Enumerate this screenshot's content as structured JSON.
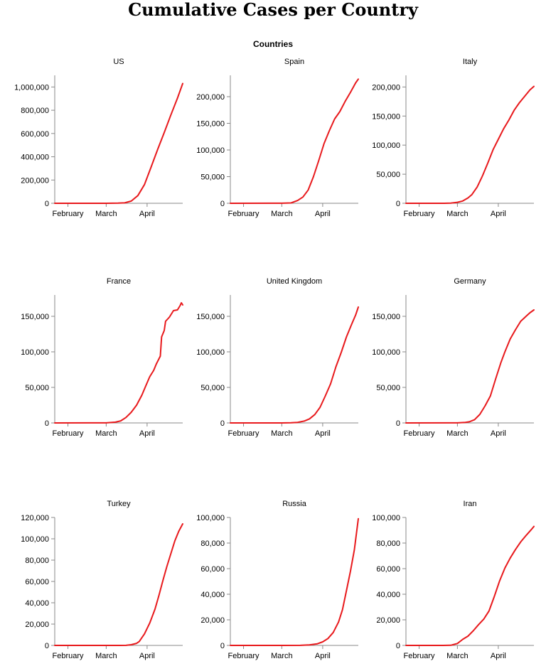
{
  "chart_data": {
    "type": "line",
    "title": "Cumulative Cases per Country",
    "facet_header": "Countries",
    "line_color": "#e8191c",
    "x_ticks": [
      "February",
      "March",
      "April"
    ],
    "x_domain": [
      "2020-01-22",
      "2020-04-28"
    ],
    "x_tick_dates": [
      "2020-02-01",
      "2020-03-01",
      "2020-04-01"
    ],
    "panels": [
      {
        "name": "US",
        "ylim": [
          0,
          1100000
        ],
        "y_ticks": [
          0,
          200000,
          400000,
          600000,
          800000,
          1000000
        ],
        "y_tick_labels": [
          "0",
          "200,000",
          "400,000",
          "600,000",
          "800,000",
          "1,000,000"
        ],
        "points": [
          [
            "2020-01-22",
            1
          ],
          [
            "2020-03-01",
            75
          ],
          [
            "2020-03-10",
            960
          ],
          [
            "2020-03-15",
            3500
          ],
          [
            "2020-03-20",
            19000
          ],
          [
            "2020-03-25",
            66000
          ],
          [
            "2020-03-30",
            161000
          ],
          [
            "2020-04-04",
            311000
          ],
          [
            "2020-04-09",
            462000
          ],
          [
            "2020-04-14",
            608000
          ],
          [
            "2020-04-19",
            759000
          ],
          [
            "2020-04-24",
            904000
          ],
          [
            "2020-04-28",
            1030000
          ]
        ]
      },
      {
        "name": "Spain",
        "ylim": [
          0,
          240000
        ],
        "y_ticks": [
          0,
          50000,
          100000,
          150000,
          200000
        ],
        "y_tick_labels": [
          "0",
          "50,000",
          "100,000",
          "150,000",
          "200,000"
        ],
        "points": [
          [
            "2020-01-22",
            0
          ],
          [
            "2020-03-01",
            84
          ],
          [
            "2020-03-08",
            670
          ],
          [
            "2020-03-13",
            5200
          ],
          [
            "2020-03-17",
            11700
          ],
          [
            "2020-03-21",
            25000
          ],
          [
            "2020-03-25",
            50000
          ],
          [
            "2020-03-29",
            80000
          ],
          [
            "2020-04-02",
            112000
          ],
          [
            "2020-04-06",
            136000
          ],
          [
            "2020-04-10",
            158000
          ],
          [
            "2020-04-14",
            172000
          ],
          [
            "2020-04-18",
            191000
          ],
          [
            "2020-04-22",
            208000
          ],
          [
            "2020-04-26",
            226000
          ],
          [
            "2020-04-28",
            233000
          ]
        ]
      },
      {
        "name": "Italy",
        "ylim": [
          0,
          220000
        ],
        "y_ticks": [
          0,
          50000,
          100000,
          150000,
          200000
        ],
        "y_tick_labels": [
          "0",
          "50,000",
          "100,000",
          "150,000",
          "200,000"
        ],
        "points": [
          [
            "2020-01-22",
            0
          ],
          [
            "2020-02-20",
            3
          ],
          [
            "2020-02-25",
            320
          ],
          [
            "2020-03-01",
            1700
          ],
          [
            "2020-03-05",
            3900
          ],
          [
            "2020-03-09",
            9200
          ],
          [
            "2020-03-12",
            15000
          ],
          [
            "2020-03-16",
            28000
          ],
          [
            "2020-03-20",
            47000
          ],
          [
            "2020-03-24",
            69000
          ],
          [
            "2020-03-28",
            92000
          ],
          [
            "2020-04-01",
            110000
          ],
          [
            "2020-04-05",
            128000
          ],
          [
            "2020-04-09",
            143000
          ],
          [
            "2020-04-13",
            160000
          ],
          [
            "2020-04-17",
            173000
          ],
          [
            "2020-04-21",
            184000
          ],
          [
            "2020-04-25",
            195000
          ],
          [
            "2020-04-28",
            201000
          ]
        ]
      },
      {
        "name": "France",
        "ylim": [
          0,
          180000
        ],
        "y_ticks": [
          0,
          50000,
          100000,
          150000
        ],
        "y_tick_labels": [
          "0",
          "50,000",
          "100,000",
          "150,000"
        ],
        "points": [
          [
            "2020-01-22",
            0
          ],
          [
            "2020-03-01",
            130
          ],
          [
            "2020-03-08",
            1100
          ],
          [
            "2020-03-12",
            2900
          ],
          [
            "2020-03-16",
            7700
          ],
          [
            "2020-03-20",
            15000
          ],
          [
            "2020-03-24",
            25000
          ],
          [
            "2020-03-28",
            39000
          ],
          [
            "2020-03-31",
            52000
          ],
          [
            "2020-04-03",
            65000
          ],
          [
            "2020-04-06",
            74000
          ],
          [
            "2020-04-08",
            83000
          ],
          [
            "2020-04-11",
            94000
          ],
          [
            "2020-04-12",
            121000
          ],
          [
            "2020-04-14",
            130000
          ],
          [
            "2020-04-15",
            143000
          ],
          [
            "2020-04-18",
            149000
          ],
          [
            "2020-04-21",
            158000
          ],
          [
            "2020-04-24",
            159000
          ],
          [
            "2020-04-26",
            165000
          ],
          [
            "2020-04-27",
            169000
          ],
          [
            "2020-04-28",
            166000
          ]
        ]
      },
      {
        "name": "United Kingdom",
        "ylim": [
          0,
          180000
        ],
        "y_ticks": [
          0,
          50000,
          100000,
          150000
        ],
        "y_tick_labels": [
          "0",
          "50,000",
          "100,000",
          "150,000"
        ],
        "points": [
          [
            "2020-01-22",
            0
          ],
          [
            "2020-03-01",
            36
          ],
          [
            "2020-03-08",
            270
          ],
          [
            "2020-03-13",
            800
          ],
          [
            "2020-03-18",
            2600
          ],
          [
            "2020-03-22",
            5700
          ],
          [
            "2020-03-26",
            11800
          ],
          [
            "2020-03-30",
            22000
          ],
          [
            "2020-04-03",
            38000
          ],
          [
            "2020-04-07",
            55000
          ],
          [
            "2020-04-11",
            79000
          ],
          [
            "2020-04-15",
            99000
          ],
          [
            "2020-04-19",
            121000
          ],
          [
            "2020-04-23",
            139000
          ],
          [
            "2020-04-26",
            152000
          ],
          [
            "2020-04-28",
            163000
          ]
        ]
      },
      {
        "name": "Germany",
        "ylim": [
          0,
          180000
        ],
        "y_ticks": [
          0,
          50000,
          100000,
          150000
        ],
        "y_tick_labels": [
          "0",
          "50,000",
          "100,000",
          "150,000"
        ],
        "points": [
          [
            "2020-01-22",
            0
          ],
          [
            "2020-03-01",
            130
          ],
          [
            "2020-03-07",
            800
          ],
          [
            "2020-03-10",
            1600
          ],
          [
            "2020-03-14",
            4600
          ],
          [
            "2020-03-18",
            12000
          ],
          [
            "2020-03-22",
            24000
          ],
          [
            "2020-03-26",
            38000
          ],
          [
            "2020-03-30",
            62000
          ],
          [
            "2020-04-03",
            85000
          ],
          [
            "2020-04-06",
            100000
          ],
          [
            "2020-04-10",
            118000
          ],
          [
            "2020-04-14",
            131000
          ],
          [
            "2020-04-18",
            143000
          ],
          [
            "2020-04-22",
            150000
          ],
          [
            "2020-04-25",
            155000
          ],
          [
            "2020-04-28",
            159000
          ]
        ]
      },
      {
        "name": "Turkey",
        "ylim": [
          0,
          120000
        ],
        "y_ticks": [
          0,
          20000,
          40000,
          60000,
          80000,
          100000,
          120000
        ],
        "y_tick_labels": [
          "0",
          "20,000",
          "40,000",
          "60,000",
          "80,000",
          "100,000",
          "120,000"
        ],
        "points": [
          [
            "2020-01-22",
            0
          ],
          [
            "2020-03-11",
            1
          ],
          [
            "2020-03-16",
            47
          ],
          [
            "2020-03-20",
            670
          ],
          [
            "2020-03-24",
            1900
          ],
          [
            "2020-03-26",
            3600
          ],
          [
            "2020-03-30",
            10800
          ],
          [
            "2020-04-03",
            20900
          ],
          [
            "2020-04-07",
            34000
          ],
          [
            "2020-04-10",
            47000
          ],
          [
            "2020-04-13",
            61000
          ],
          [
            "2020-04-16",
            74000
          ],
          [
            "2020-04-19",
            86000
          ],
          [
            "2020-04-22",
            98000
          ],
          [
            "2020-04-25",
            107000
          ],
          [
            "2020-04-28",
            114000
          ]
        ]
      },
      {
        "name": "Russia",
        "ylim": [
          0,
          100000
        ],
        "y_ticks": [
          0,
          20000,
          40000,
          60000,
          80000,
          100000
        ],
        "y_tick_labels": [
          "0",
          "20,000",
          "40,000",
          "60,000",
          "80,000",
          "100,000"
        ],
        "points": [
          [
            "2020-01-22",
            0
          ],
          [
            "2020-03-01",
            3
          ],
          [
            "2020-03-15",
            63
          ],
          [
            "2020-03-22",
            370
          ],
          [
            "2020-03-28",
            1260
          ],
          [
            "2020-04-01",
            2800
          ],
          [
            "2020-04-05",
            5400
          ],
          [
            "2020-04-09",
            10100
          ],
          [
            "2020-04-13",
            18300
          ],
          [
            "2020-04-16",
            27900
          ],
          [
            "2020-04-19",
            42800
          ],
          [
            "2020-04-22",
            57900
          ],
          [
            "2020-04-25",
            74600
          ],
          [
            "2020-04-28",
            99000
          ]
        ]
      },
      {
        "name": "Iran",
        "ylim": [
          0,
          100000
        ],
        "y_ticks": [
          0,
          20000,
          40000,
          60000,
          80000,
          100000
        ],
        "y_tick_labels": [
          "0",
          "20,000",
          "40,000",
          "60,000",
          "80,000",
          "100,000"
        ],
        "points": [
          [
            "2020-01-22",
            0
          ],
          [
            "2020-02-19",
            2
          ],
          [
            "2020-02-25",
            95
          ],
          [
            "2020-03-01",
            1500
          ],
          [
            "2020-03-05",
            4700
          ],
          [
            "2020-03-09",
            7200
          ],
          [
            "2020-03-13",
            11400
          ],
          [
            "2020-03-17",
            16200
          ],
          [
            "2020-03-21",
            20600
          ],
          [
            "2020-03-25",
            27000
          ],
          [
            "2020-03-29",
            38300
          ],
          [
            "2020-04-02",
            50500
          ],
          [
            "2020-04-06",
            60500
          ],
          [
            "2020-04-10",
            68200
          ],
          [
            "2020-04-14",
            74900
          ],
          [
            "2020-04-18",
            80900
          ],
          [
            "2020-04-22",
            85900
          ],
          [
            "2020-04-26",
            90500
          ],
          [
            "2020-04-28",
            93000
          ]
        ]
      }
    ]
  }
}
